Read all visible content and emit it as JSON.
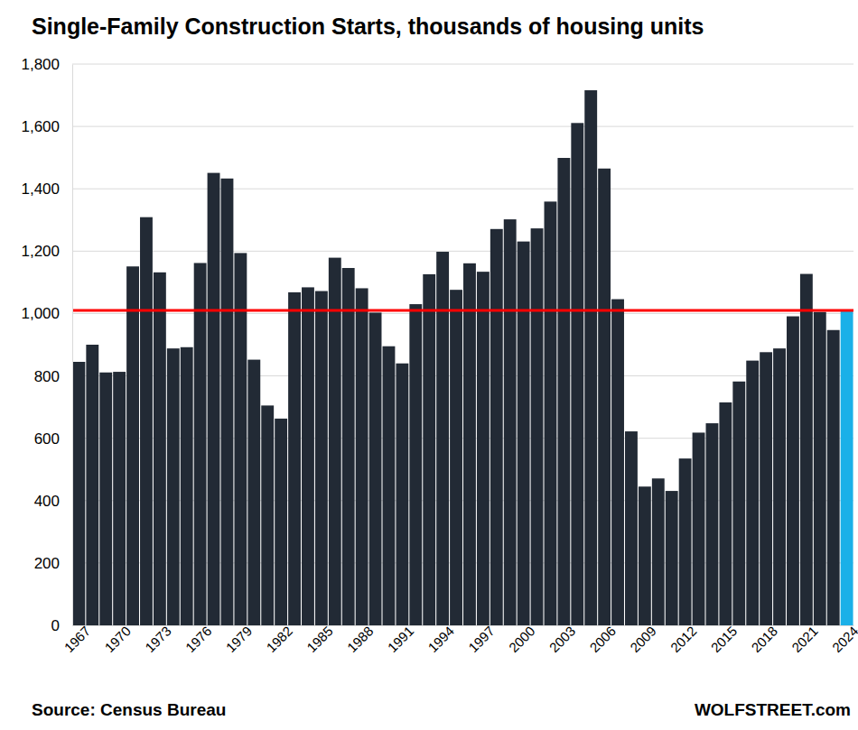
{
  "chart_data": {
    "type": "bar",
    "title": "Single-Family Construction Starts, thousands of housing units",
    "source": "Source: Census Bureau",
    "credit": "WOLFSTREET.com",
    "categories": [
      "1967",
      null,
      null,
      "1970",
      null,
      null,
      "1973",
      null,
      null,
      "1976",
      null,
      null,
      "1979",
      null,
      null,
      "1982",
      null,
      null,
      "1985",
      null,
      null,
      "1988",
      null,
      null,
      "1991",
      null,
      null,
      "1994",
      null,
      null,
      "1997",
      null,
      null,
      "2000",
      null,
      null,
      "2003",
      null,
      null,
      "2006",
      null,
      null,
      "2009",
      null,
      null,
      "2012",
      null,
      null,
      "2015",
      null,
      null,
      "2018",
      null,
      null,
      "2021",
      null,
      null,
      "2024"
    ],
    "values": [
      845,
      900,
      811,
      813,
      1151,
      1309,
      1132,
      888,
      892,
      1162,
      1451,
      1433,
      1194,
      852,
      705,
      663,
      1068,
      1084,
      1072,
      1179,
      1146,
      1081,
      1003,
      895,
      840,
      1030,
      1126,
      1198,
      1076,
      1161,
      1134,
      1271,
      1302,
      1231,
      1273,
      1359,
      1499,
      1611,
      1716,
      1465,
      1046,
      622,
      445,
      471,
      431,
      535,
      618,
      648,
      715,
      782,
      849,
      876,
      888,
      991,
      1127,
      1005,
      947,
      1010
    ],
    "colors": [
      "#222a35",
      "#222a35",
      "#222a35",
      "#222a35",
      "#222a35",
      "#222a35",
      "#222a35",
      "#222a35",
      "#222a35",
      "#222a35",
      "#222a35",
      "#222a35",
      "#222a35",
      "#222a35",
      "#222a35",
      "#222a35",
      "#222a35",
      "#222a35",
      "#222a35",
      "#222a35",
      "#222a35",
      "#222a35",
      "#222a35",
      "#222a35",
      "#222a35",
      "#222a35",
      "#222a35",
      "#222a35",
      "#222a35",
      "#222a35",
      "#222a35",
      "#222a35",
      "#222a35",
      "#222a35",
      "#222a35",
      "#222a35",
      "#222a35",
      "#222a35",
      "#222a35",
      "#222a35",
      "#222a35",
      "#222a35",
      "#222a35",
      "#222a35",
      "#222a35",
      "#222a35",
      "#222a35",
      "#222a35",
      "#222a35",
      "#222a35",
      "#222a35",
      "#222a35",
      "#222a35",
      "#222a35",
      "#222a35",
      "#222a35",
      "#222a35",
      "#1ab0e8"
    ],
    "reference_line": {
      "value": 1010,
      "color": "#ff0000"
    },
    "ylim": [
      0,
      1800
    ],
    "yticks": [
      0,
      200,
      400,
      600,
      800,
      {
        "value": 1000,
        "label": "1,000"
      },
      {
        "value": 1200,
        "label": "1,200"
      },
      {
        "value": 1400,
        "label": "1,400"
      },
      {
        "value": 1600,
        "label": "1,600"
      },
      {
        "value": 1800,
        "label": "1,800"
      }
    ],
    "grid": true
  }
}
